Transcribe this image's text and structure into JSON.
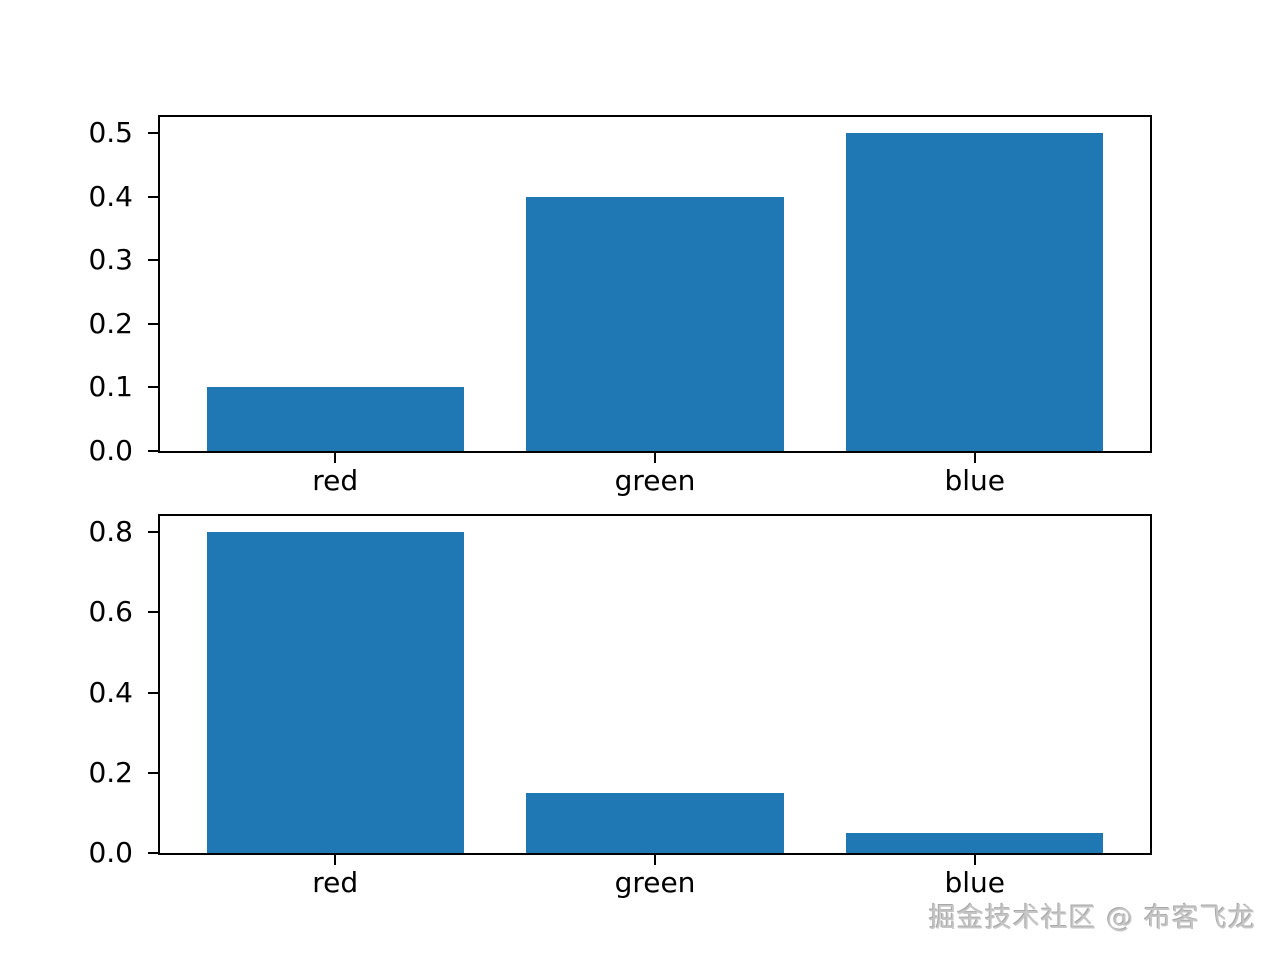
{
  "figure": {
    "background": "#ffffff"
  },
  "colors": {
    "bar": "#1f77b4",
    "axis": "#000000",
    "tick_label": "#000000",
    "watermark": "#c6c6c6"
  },
  "watermark": {
    "text": "掘金技术社区 @ 布客飞龙"
  },
  "chart_data": [
    {
      "type": "bar",
      "title": "",
      "xlabel": "",
      "ylabel": "",
      "categories": [
        "red",
        "green",
        "blue"
      ],
      "values": [
        0.1,
        0.4,
        0.5
      ],
      "yticks": [
        0.0,
        0.1,
        0.2,
        0.3,
        0.4,
        0.5
      ],
      "ytick_labels": [
        "0.0",
        "0.1",
        "0.2",
        "0.3",
        "0.4",
        "0.5"
      ],
      "ylim": [
        0,
        0.525
      ],
      "grid": false
    },
    {
      "type": "bar",
      "title": "",
      "xlabel": "",
      "ylabel": "",
      "categories": [
        "red",
        "green",
        "blue"
      ],
      "values": [
        0.8,
        0.15,
        0.05
      ],
      "yticks": [
        0.0,
        0.2,
        0.4,
        0.6,
        0.8
      ],
      "ytick_labels": [
        "0.0",
        "0.2",
        "0.4",
        "0.6",
        "0.8"
      ],
      "ylim": [
        0,
        0.84
      ],
      "grid": false
    }
  ]
}
